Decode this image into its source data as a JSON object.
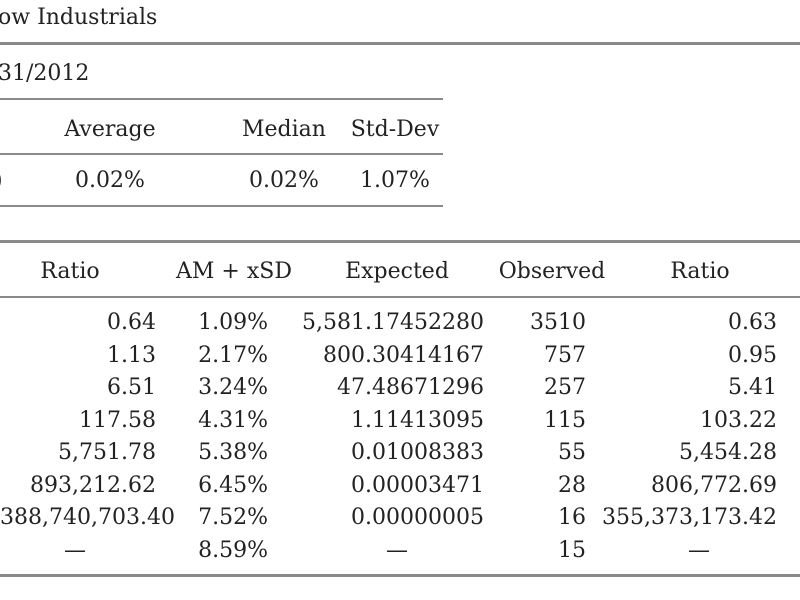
{
  "title": "ow Industrials",
  "date_label": "31/2012",
  "summary": {
    "headers": [
      "Average",
      "Median",
      "Std-Dev"
    ],
    "values": [
      "0.02%",
      "0.02%",
      "1.07%"
    ],
    "left_edge": ")"
  },
  "main": {
    "headers": [
      "Ratio",
      "AM + xSD",
      "Expected",
      "Observed",
      "Ratio"
    ],
    "rows": [
      [
        "0.64",
        "1.09%",
        "5,581.17452280",
        "3510",
        "0.63"
      ],
      [
        "1.13",
        "2.17%",
        "800.30414167",
        "757",
        "0.95"
      ],
      [
        "6.51",
        "3.24%",
        "47.48671296",
        "257",
        "5.41"
      ],
      [
        "117.58",
        "4.31%",
        "1.11413095",
        "115",
        "103.22"
      ],
      [
        "5,751.78",
        "5.38%",
        "0.01008383",
        "55",
        "5,454.28"
      ],
      [
        "893,212.62",
        "6.45%",
        "0.00003471",
        "28",
        "806,772.69"
      ],
      [
        "388,740,703.40",
        "7.52%",
        "0.00000005",
        "16",
        "355,373,173.42"
      ],
      [
        "—",
        "8.59%",
        "—",
        "15",
        "—"
      ]
    ]
  }
}
